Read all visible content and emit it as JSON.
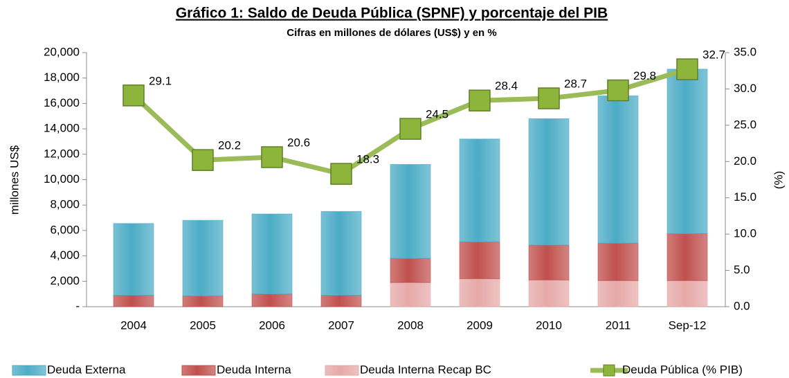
{
  "chart_data": {
    "type": "bar-line",
    "title": "Gráfico 1: Saldo de Deuda Pública (SPNF) y  porcentaje del PIB",
    "subtitle": "Cifras en millones de dólares (US$) y en %",
    "ylabel": "millones  US$",
    "y2label": "(%)",
    "categories": [
      "2004",
      "2005",
      "2006",
      "2007",
      "2008",
      "2009",
      "2010",
      "2011",
      "Sep-12"
    ],
    "series": [
      {
        "name": "Deuda Externa",
        "color": "#4bacc6",
        "values": [
          5650,
          5950,
          6300,
          6600,
          7400,
          8100,
          9950,
          11600,
          12950
        ]
      },
      {
        "name": "Deuda Interna",
        "color": "#c0504d",
        "values": [
          900,
          850,
          1000,
          900,
          1900,
          2900,
          2750,
          2950,
          3700
        ]
      },
      {
        "name": "Deuda Interna  Recap BC",
        "color": "#e6a9a8",
        "values": [
          0,
          0,
          0,
          0,
          1900,
          2200,
          2100,
          2050,
          2050
        ]
      },
      {
        "name": "Deuda Pública (% PIB)",
        "color": "#9bbb59",
        "axis": "y2",
        "values": [
          29.1,
          20.2,
          20.6,
          18.3,
          24.5,
          28.4,
          28.7,
          29.8,
          32.7
        ]
      }
    ],
    "stack_order": [
      2,
      1,
      0
    ],
    "ylim": [
      0,
      20000
    ],
    "yticks": [
      {
        "value": 0,
        "label": "-"
      },
      {
        "value": 2000,
        "label": "2,000"
      },
      {
        "value": 4000,
        "label": "4,000"
      },
      {
        "value": 6000,
        "label": "6,000"
      },
      {
        "value": 8000,
        "label": "8,000"
      },
      {
        "value": 10000,
        "label": "10,000"
      },
      {
        "value": 12000,
        "label": "12,000"
      },
      {
        "value": 14000,
        "label": "14,000"
      },
      {
        "value": 16000,
        "label": "16,000"
      },
      {
        "value": 18000,
        "label": "18,000"
      },
      {
        "value": 20000,
        "label": "20,000"
      }
    ],
    "y2lim": [
      0,
      35
    ],
    "y2ticks": [
      {
        "value": 0,
        "label": "0.0"
      },
      {
        "value": 5,
        "label": "5.0"
      },
      {
        "value": 10,
        "label": "10.0"
      },
      {
        "value": 15,
        "label": "15.0"
      },
      {
        "value": 20,
        "label": "20.0"
      },
      {
        "value": 25,
        "label": "25.0"
      },
      {
        "value": 30,
        "label": "30.0"
      },
      {
        "value": 35,
        "label": "35.0"
      }
    ],
    "legend": "bottom"
  }
}
